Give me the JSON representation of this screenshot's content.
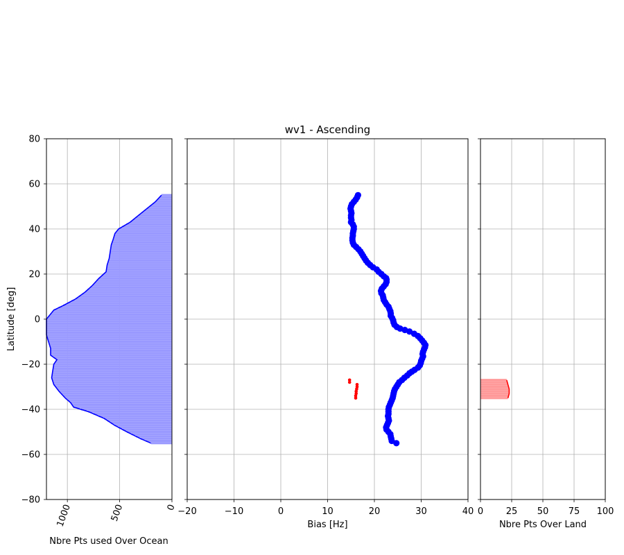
{
  "chart_data": [
    {
      "type": "area",
      "panel": "left",
      "title": "",
      "xlabel": "Nbre Pts used Over Ocean",
      "ylabel": "Latitude [deg]",
      "xlim": [
        1200,
        0
      ],
      "ylim": [
        -80,
        80
      ],
      "xticks": [
        "1000",
        "500",
        "0"
      ],
      "xtick_values": [
        1000,
        500,
        0
      ],
      "xtick_rotation_deg": -70,
      "yticks": [
        "−80",
        "−60",
        "−40",
        "−20",
        "0",
        "20",
        "40",
        "60",
        "80"
      ],
      "ytick_values": [
        -80,
        -60,
        -40,
        -20,
        0,
        20,
        40,
        60,
        80
      ],
      "grid": true,
      "line_color": "#0000ff",
      "fill_color": "#9999ff",
      "profile": [
        {
          "lat": 55,
          "n": 100
        },
        {
          "lat": 52,
          "n": 160
        },
        {
          "lat": 49,
          "n": 240
        },
        {
          "lat": 46,
          "n": 320
        },
        {
          "lat": 43,
          "n": 400
        },
        {
          "lat": 40,
          "n": 510
        },
        {
          "lat": 38,
          "n": 545
        },
        {
          "lat": 35,
          "n": 565
        },
        {
          "lat": 33,
          "n": 580
        },
        {
          "lat": 30,
          "n": 590
        },
        {
          "lat": 27,
          "n": 600
        },
        {
          "lat": 24,
          "n": 620
        },
        {
          "lat": 21,
          "n": 630
        },
        {
          "lat": 18,
          "n": 700
        },
        {
          "lat": 15,
          "n": 760
        },
        {
          "lat": 12,
          "n": 830
        },
        {
          "lat": 9,
          "n": 920
        },
        {
          "lat": 6,
          "n": 1040
        },
        {
          "lat": 4,
          "n": 1130
        },
        {
          "lat": 0,
          "n": 1200
        },
        {
          "lat": -3,
          "n": 1200
        },
        {
          "lat": -7,
          "n": 1200
        },
        {
          "lat": -10,
          "n": 1180
        },
        {
          "lat": -13,
          "n": 1160
        },
        {
          "lat": -16,
          "n": 1160
        },
        {
          "lat": -18,
          "n": 1100
        },
        {
          "lat": -20,
          "n": 1130
        },
        {
          "lat": -23,
          "n": 1140
        },
        {
          "lat": -26,
          "n": 1150
        },
        {
          "lat": -29,
          "n": 1130
        },
        {
          "lat": -32,
          "n": 1080
        },
        {
          "lat": -35,
          "n": 1020
        },
        {
          "lat": -37,
          "n": 970
        },
        {
          "lat": -39,
          "n": 940
        },
        {
          "lat": -41,
          "n": 800
        },
        {
          "lat": -44,
          "n": 650
        },
        {
          "lat": -47,
          "n": 550
        },
        {
          "lat": -50,
          "n": 430
        },
        {
          "lat": -53,
          "n": 300
        },
        {
          "lat": -55,
          "n": 200
        }
      ]
    },
    {
      "type": "scatter",
      "panel": "center",
      "title": "wv1 - Ascending",
      "xlabel": "Bias [Hz]",
      "ylabel": "",
      "xlim": [
        -20,
        40
      ],
      "ylim": [
        -80,
        80
      ],
      "xticks": [
        "−20",
        "−10",
        "0",
        "10",
        "20",
        "30",
        "40"
      ],
      "xtick_values": [
        -20,
        -10,
        0,
        10,
        20,
        30,
        40
      ],
      "ytick_values": [
        -80,
        -60,
        -40,
        -20,
        0,
        20,
        40,
        60,
        80
      ],
      "grid": true,
      "series": [
        {
          "color": "#0000ff",
          "marker": "large-dot",
          "points": [
            [
              16.5,
              55
            ],
            [
              16.3,
              54
            ],
            [
              16.0,
              53
            ],
            [
              15.6,
              52
            ],
            [
              15.2,
              51
            ],
            [
              15.0,
              50
            ],
            [
              14.9,
              49
            ],
            [
              15.0,
              48
            ],
            [
              15.1,
              47
            ],
            [
              15.0,
              46
            ],
            [
              15.0,
              45
            ],
            [
              15.1,
              44
            ],
            [
              15.0,
              43
            ],
            [
              15.4,
              42
            ],
            [
              15.6,
              41
            ],
            [
              15.6,
              40
            ],
            [
              15.5,
              39
            ],
            [
              15.4,
              38
            ],
            [
              15.4,
              37
            ],
            [
              15.3,
              36
            ],
            [
              15.3,
              35
            ],
            [
              15.4,
              34
            ],
            [
              15.6,
              33
            ],
            [
              16.1,
              32
            ],
            [
              16.6,
              31
            ],
            [
              17.0,
              30
            ],
            [
              17.3,
              29
            ],
            [
              17.6,
              28
            ],
            [
              17.9,
              27
            ],
            [
              18.2,
              26
            ],
            [
              18.6,
              25
            ],
            [
              19.1,
              24
            ],
            [
              19.7,
              23
            ],
            [
              20.5,
              22
            ],
            [
              20.9,
              21
            ],
            [
              21.5,
              20
            ],
            [
              22.0,
              19
            ],
            [
              22.5,
              18.2
            ],
            [
              22.6,
              17.5
            ],
            [
              22.6,
              16.5
            ],
            [
              22.4,
              15.5
            ],
            [
              22.0,
              14.5
            ],
            [
              21.6,
              13.5
            ],
            [
              21.4,
              12.5
            ],
            [
              21.5,
              11.5
            ],
            [
              21.8,
              10.5
            ],
            [
              21.9,
              9.5
            ],
            [
              22.0,
              8.5
            ],
            [
              22.3,
              7.5
            ],
            [
              22.6,
              6.5
            ],
            [
              23.0,
              5.5
            ],
            [
              23.2,
              4.5
            ],
            [
              23.4,
              3.5
            ],
            [
              23.5,
              2.5
            ],
            [
              23.5,
              1.5
            ],
            [
              23.8,
              0.5
            ],
            [
              24.0,
              -0.5
            ],
            [
              24.1,
              -1.5
            ],
            [
              24.3,
              -2.5
            ],
            [
              24.8,
              -3.5
            ],
            [
              25.5,
              -4.2
            ],
            [
              26.5,
              -4.8
            ],
            [
              27.5,
              -5.5
            ],
            [
              28.5,
              -6.5
            ],
            [
              29.3,
              -7.5
            ],
            [
              29.8,
              -8.5
            ],
            [
              30.2,
              -9.5
            ],
            [
              30.6,
              -10.5
            ],
            [
              30.9,
              -11.5
            ],
            [
              30.8,
              -12.5
            ],
            [
              30.6,
              -13.5
            ],
            [
              30.4,
              -14.5
            ],
            [
              30.3,
              -15.5
            ],
            [
              30.4,
              -16.5
            ],
            [
              30.2,
              -17.5
            ],
            [
              30.0,
              -18.5
            ],
            [
              29.9,
              -19.5
            ],
            [
              29.7,
              -20.5
            ],
            [
              29.3,
              -21.5
            ],
            [
              28.6,
              -22.5
            ],
            [
              28.0,
              -23.3
            ],
            [
              27.5,
              -24
            ],
            [
              27.0,
              -25
            ],
            [
              26.4,
              -26
            ],
            [
              25.9,
              -27
            ],
            [
              25.3,
              -28
            ],
            [
              25.0,
              -29
            ],
            [
              24.7,
              -30
            ],
            [
              24.4,
              -31
            ],
            [
              24.2,
              -32
            ],
            [
              24.1,
              -33
            ],
            [
              24.0,
              -34
            ],
            [
              23.9,
              -35
            ],
            [
              23.7,
              -36
            ],
            [
              23.5,
              -37
            ],
            [
              23.3,
              -38
            ],
            [
              23.1,
              -39
            ],
            [
              23.0,
              -40
            ],
            [
              23.0,
              -41
            ],
            [
              23.0,
              -42
            ],
            [
              22.9,
              -43
            ],
            [
              23.0,
              -44
            ],
            [
              23.1,
              -45
            ],
            [
              22.9,
              -46
            ],
            [
              22.7,
              -47
            ],
            [
              22.5,
              -48
            ],
            [
              22.6,
              -49
            ],
            [
              23.0,
              -50
            ],
            [
              23.4,
              -51
            ],
            [
              23.5,
              -52
            ],
            [
              23.6,
              -53
            ],
            [
              23.7,
              -54
            ],
            [
              24.7,
              -55
            ]
          ]
        },
        {
          "color": "#ff0000",
          "marker": "small-dot",
          "points": [
            [
              14.7,
              -27
            ],
            [
              14.7,
              -28
            ],
            [
              16.3,
              -29
            ],
            [
              16.3,
              -30
            ],
            [
              16.2,
              -31
            ],
            [
              16.1,
              -32
            ],
            [
              16.1,
              -33
            ],
            [
              16.0,
              -34
            ],
            [
              16.0,
              -35
            ]
          ]
        }
      ]
    },
    {
      "type": "area",
      "panel": "right",
      "title": "",
      "xlabel": "Nbre Pts Over Land",
      "ylabel": "",
      "xlim": [
        0,
        100
      ],
      "ylim": [
        -80,
        80
      ],
      "xticks": [
        "0",
        "25",
        "50",
        "75",
        "100"
      ],
      "xtick_values": [
        0,
        25,
        50,
        75,
        100
      ],
      "ytick_values": [
        -80,
        -60,
        -40,
        -20,
        0,
        20,
        40,
        60,
        80
      ],
      "grid": true,
      "line_color": "#ff0000",
      "fill_color": "#ff9999",
      "profile": [
        {
          "lat": -27,
          "n": 21
        },
        {
          "lat": -28,
          "n": 21.5
        },
        {
          "lat": -29,
          "n": 22
        },
        {
          "lat": -30,
          "n": 22.5
        },
        {
          "lat": -31,
          "n": 23
        },
        {
          "lat": -32,
          "n": 23
        },
        {
          "lat": -33,
          "n": 23
        },
        {
          "lat": -34,
          "n": 22.5
        },
        {
          "lat": -35,
          "n": 22
        }
      ]
    }
  ]
}
